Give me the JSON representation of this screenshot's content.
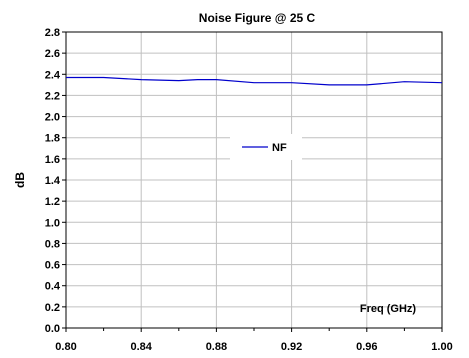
{
  "chart_data": {
    "type": "line",
    "title": "Noise Figure @ 25 C",
    "xlabel": "Freq (GHz)",
    "ylabel": "dB",
    "xlim": [
      0.8,
      1.0
    ],
    "ylim": [
      0.0,
      2.8
    ],
    "x_ticks": [
      "0.80",
      "0.84",
      "0.88",
      "0.92",
      "0.96",
      "1.00"
    ],
    "y_ticks": [
      "0.0",
      "0.2",
      "0.4",
      "0.6",
      "0.8",
      "1.0",
      "1.2",
      "1.4",
      "1.6",
      "1.8",
      "2.0",
      "2.2",
      "2.4",
      "2.6",
      "2.8"
    ],
    "grid": true,
    "legend_position": "center",
    "series": [
      {
        "name": "NF",
        "color": "#0000cc",
        "x": [
          0.8,
          0.82,
          0.84,
          0.86,
          0.87,
          0.88,
          0.9,
          0.92,
          0.94,
          0.96,
          0.98,
          1.0
        ],
        "y": [
          2.37,
          2.37,
          2.35,
          2.34,
          2.35,
          2.35,
          2.32,
          2.32,
          2.3,
          2.3,
          2.33,
          2.32
        ]
      }
    ]
  }
}
